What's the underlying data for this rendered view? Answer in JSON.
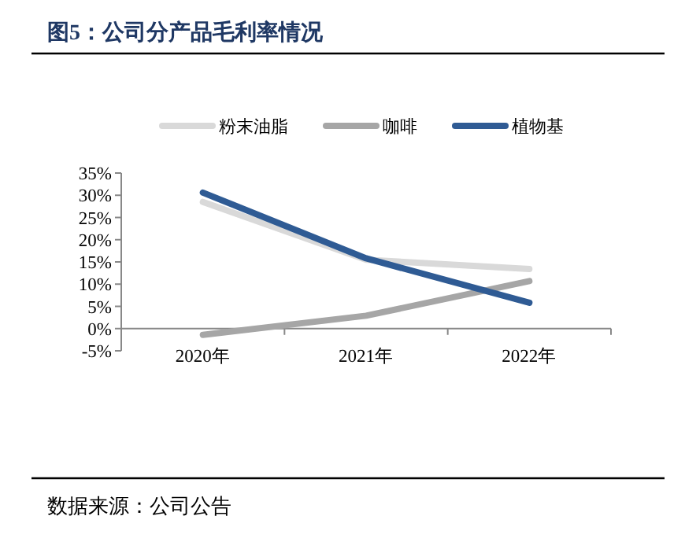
{
  "chart_data": {
    "type": "line",
    "title": "图5：公司分产品毛利率情况",
    "categories": [
      "2020年",
      "2021年",
      "2022年"
    ],
    "series": [
      {
        "name": "粉末油脂",
        "color": "#d9d9d9",
        "values": [
          28.5,
          15.5,
          13.4
        ]
      },
      {
        "name": "咖啡",
        "color": "#a6a6a6",
        "values": [
          -1.4,
          2.9,
          10.7
        ]
      },
      {
        "name": "植物基",
        "color": "#2f5b94",
        "values": [
          30.6,
          15.8,
          5.8
        ]
      }
    ],
    "ylim": [
      -5,
      35
    ],
    "yticks": [
      {
        "value": -5,
        "label": "-5%"
      },
      {
        "value": 0,
        "label": "0%"
      },
      {
        "value": 5,
        "label": "5%"
      },
      {
        "value": 10,
        "label": "10%"
      },
      {
        "value": 15,
        "label": "15%"
      },
      {
        "value": 20,
        "label": "20%"
      },
      {
        "value": 25,
        "label": "25%"
      },
      {
        "value": 30,
        "label": "30%"
      },
      {
        "value": 35,
        "label": "35%"
      }
    ],
    "legend": "top",
    "grid": false,
    "marker": "none",
    "line_style": "solid",
    "annotations": [
      "数据来源：公司公告"
    ]
  }
}
